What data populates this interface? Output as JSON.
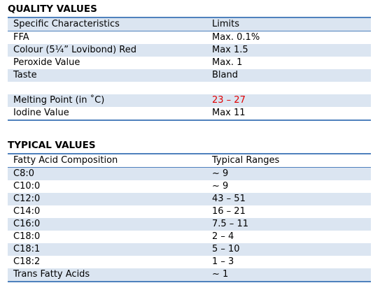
{
  "quality": {
    "title": "QUALITY VALUES",
    "header": [
      "Specific Characteristics",
      "Limits"
    ],
    "rows": [
      [
        "FFA",
        "Max. 0.1%"
      ],
      [
        "Colour (5¼” Lovibond) Red",
        "Max 1.5"
      ],
      [
        "Peroxide Value",
        "Max. 1"
      ],
      [
        "Taste",
        "Bland"
      ],
      [
        "Melting Point (in ˚C)",
        "23 – 27"
      ],
      [
        "Iodine Value",
        "Max 11"
      ]
    ]
  },
  "typical": {
    "title": "TYPICAL VALUES",
    "header": [
      "Fatty Acid Composition",
      "Typical Ranges"
    ],
    "rows": [
      [
        "C8:0",
        "~ 9"
      ],
      [
        "C10:0",
        "~ 9"
      ],
      [
        "C12:0",
        "43 – 51"
      ],
      [
        "C14:0",
        "16 – 21"
      ],
      [
        "C16:0",
        "7.5 – 11"
      ],
      [
        "C18:0",
        "2 – 4"
      ],
      [
        "C18:1",
        "5 – 10"
      ],
      [
        "C18:2",
        "1 – 3"
      ],
      [
        "Trans Fatty Acids",
        "~ 1"
      ]
    ]
  }
}
